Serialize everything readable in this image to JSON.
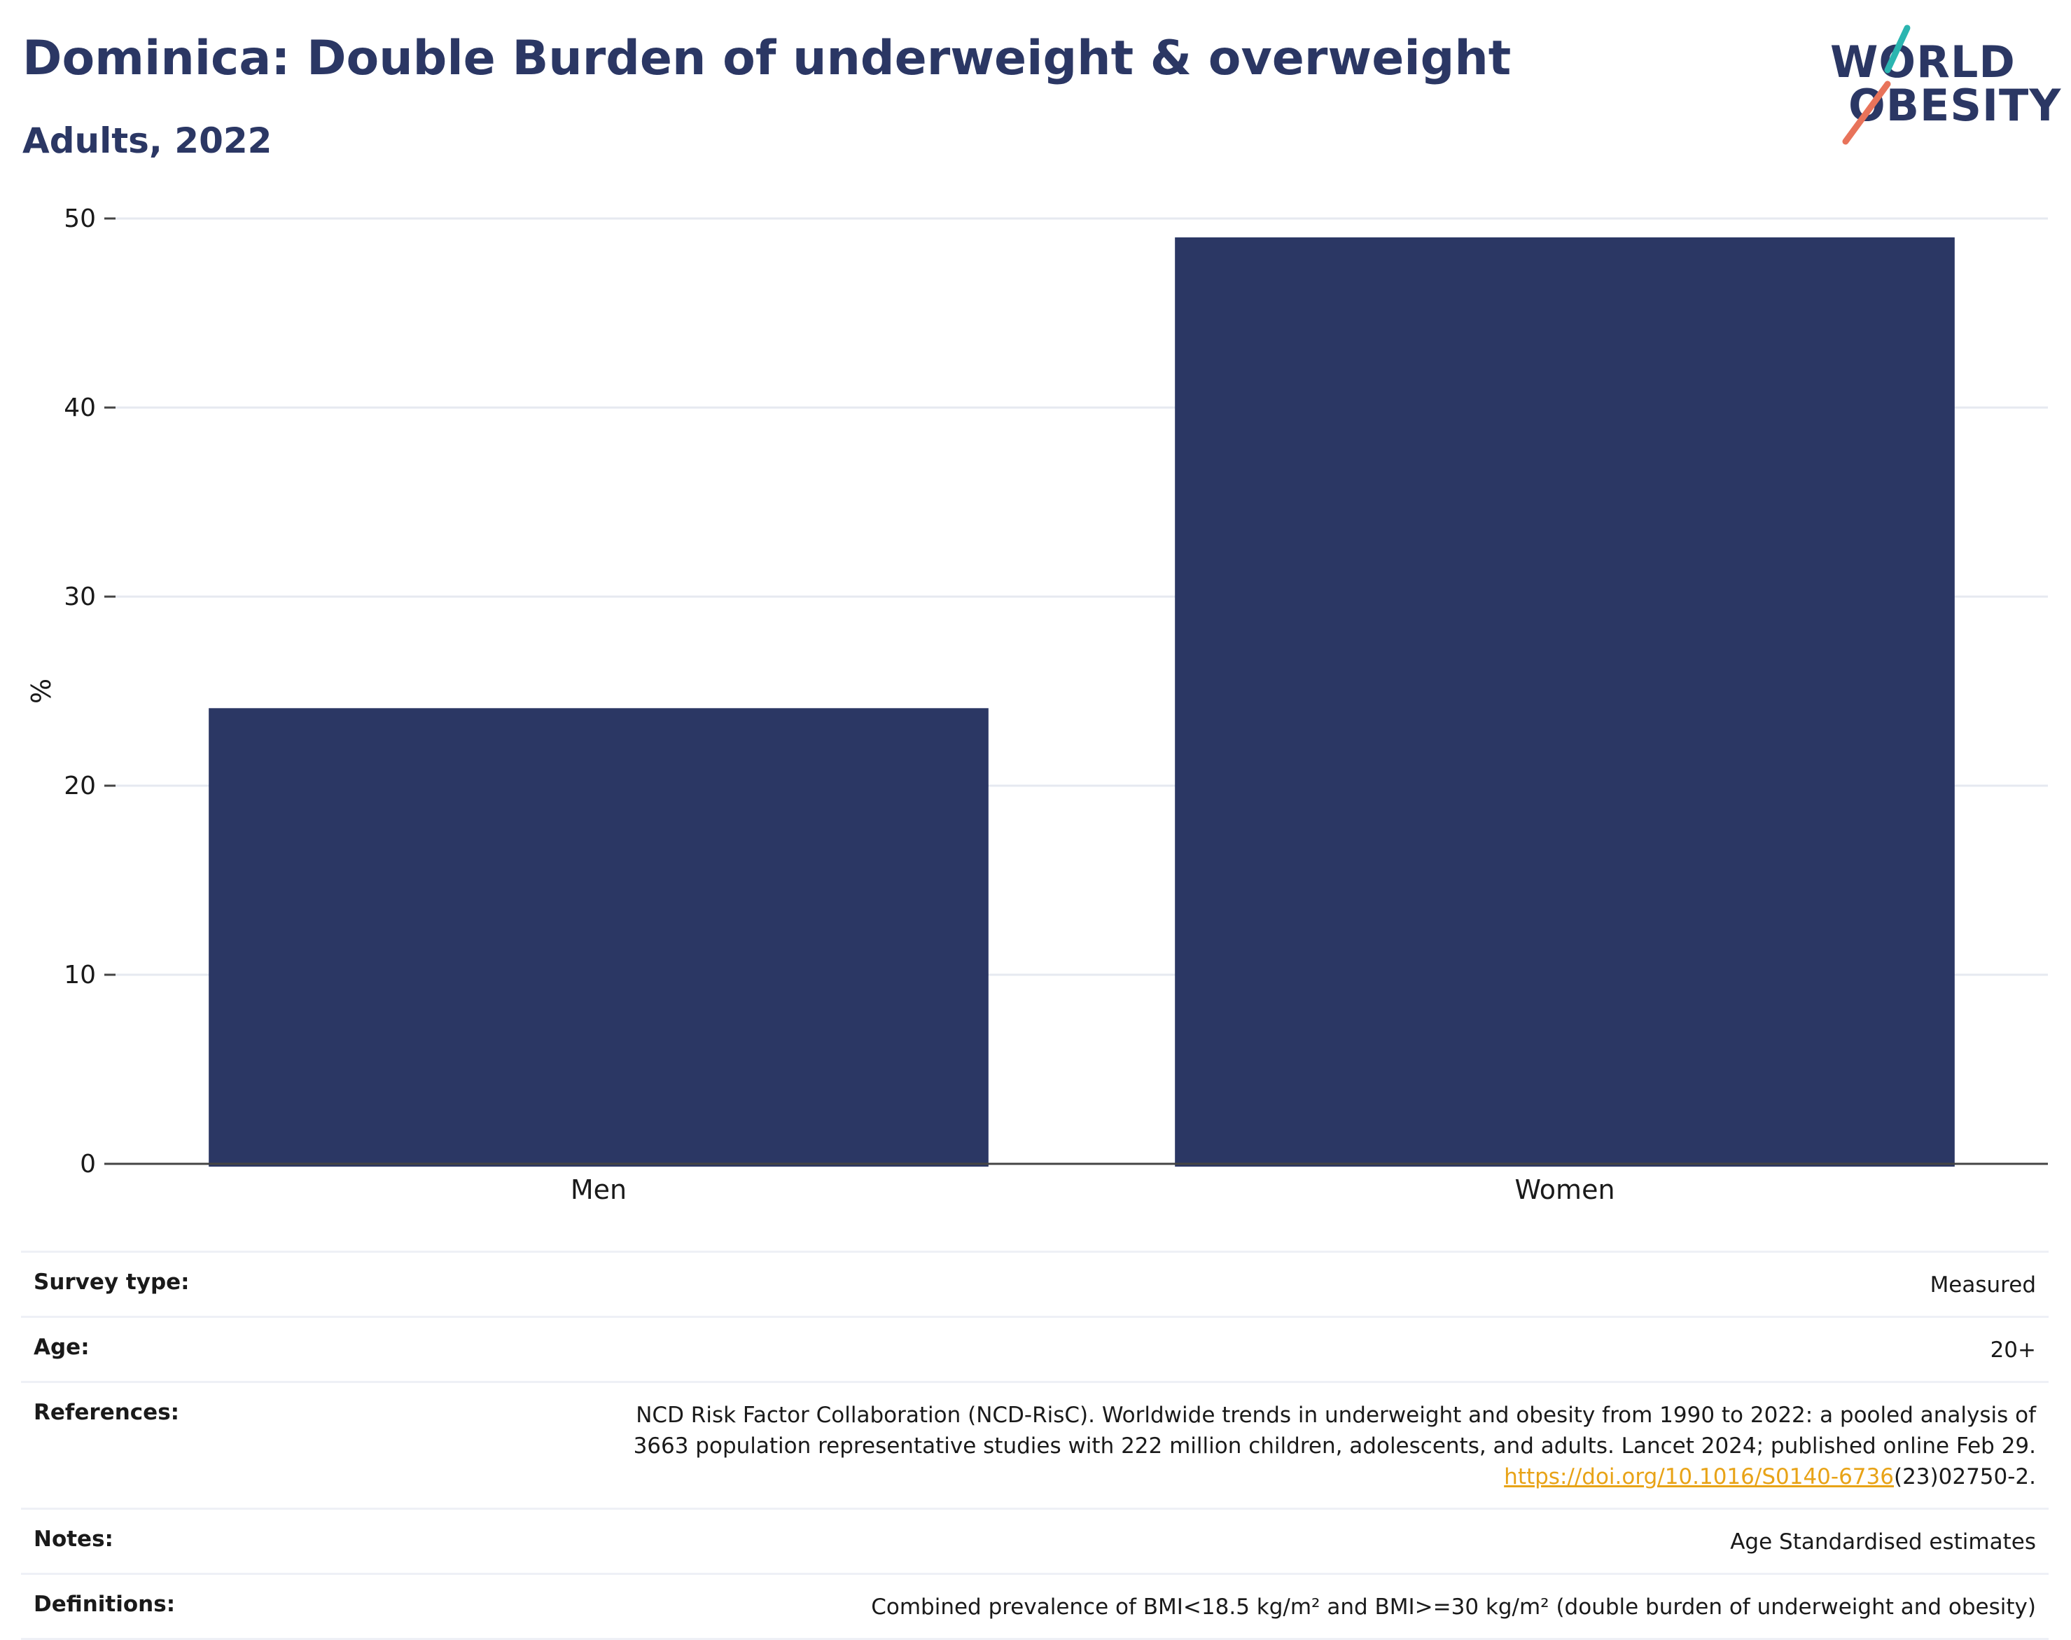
{
  "header": {
    "title": "Dominica: Double Burden of underweight & overweight",
    "subtitle": "Adults, 2022"
  },
  "logo": {
    "line1": "WORLD",
    "line2": "OBESITY",
    "accent_teal": "#2bb5b0",
    "accent_coral": "#e8735a"
  },
  "colors": {
    "bar": "#2b3764",
    "grid": "#e6e9f0",
    "axis": "#444444",
    "text": "#1a1a1a",
    "link": "#e8a317"
  },
  "chart_data": {
    "type": "bar",
    "categories": [
      "Men",
      "Women"
    ],
    "values": [
      24.1,
      49.0
    ],
    "ylabel": "%",
    "xlabel": "",
    "ylim": [
      0,
      50
    ],
    "yticks": [
      0,
      10,
      20,
      30,
      40,
      50
    ],
    "grid": true,
    "legend": "none"
  },
  "metadata": {
    "rows": [
      {
        "label": "Survey type:",
        "value": "Measured"
      },
      {
        "label": "Age:",
        "value": "20+"
      },
      {
        "label": "References:",
        "value_line1": "NCD Risk Factor Collaboration (NCD-RisC). Worldwide trends in underweight and obesity from 1990 to 2022: a pooled analysis of",
        "value_line2": "3663 population representative studies with 222 million children, adolescents, and adults. Lancet 2024; published online Feb 29.",
        "link_text": "https://doi.org/10.1016/S0140-6736",
        "link_suffix": "(23)02750-2."
      },
      {
        "label": "Notes:",
        "value": "Age Standardised estimates"
      },
      {
        "label": "Definitions:",
        "value": "Combined prevalence of BMI<18.5 kg/m² and BMI>=30 kg/m² (double burden of underweight and obesity)"
      }
    ]
  }
}
